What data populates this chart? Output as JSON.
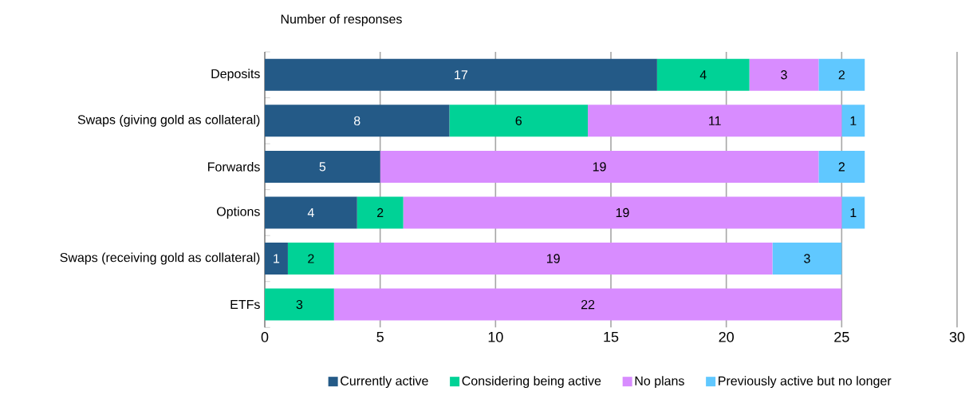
{
  "chart_data": {
    "type": "bar",
    "orientation": "horizontal",
    "stacked": true,
    "title": "Number of responses",
    "categories": [
      "Deposits",
      "Swaps (giving gold as collateral)",
      "Forwards",
      "Options",
      "Swaps (receiving gold as collateral)",
      "ETFs"
    ],
    "series": [
      {
        "name": "Currently active",
        "color": "#245a87",
        "values": [
          17,
          8,
          5,
          4,
          1,
          null
        ]
      },
      {
        "name": "Considering being active",
        "color": "#00d296",
        "values": [
          4,
          6,
          null,
          2,
          2,
          3
        ]
      },
      {
        "name": "No plans",
        "color": "#d88cff",
        "values": [
          3,
          11,
          19,
          19,
          19,
          22
        ]
      },
      {
        "name": "Previously active but no longer",
        "color": "#60c8ff",
        "values": [
          2,
          1,
          2,
          1,
          3,
          null
        ]
      }
    ],
    "xlim": [
      0,
      30
    ],
    "xticks": [
      0,
      5,
      10,
      15,
      20,
      25,
      30
    ],
    "grid": "x",
    "legend": "bottom",
    "data_labels": true
  }
}
